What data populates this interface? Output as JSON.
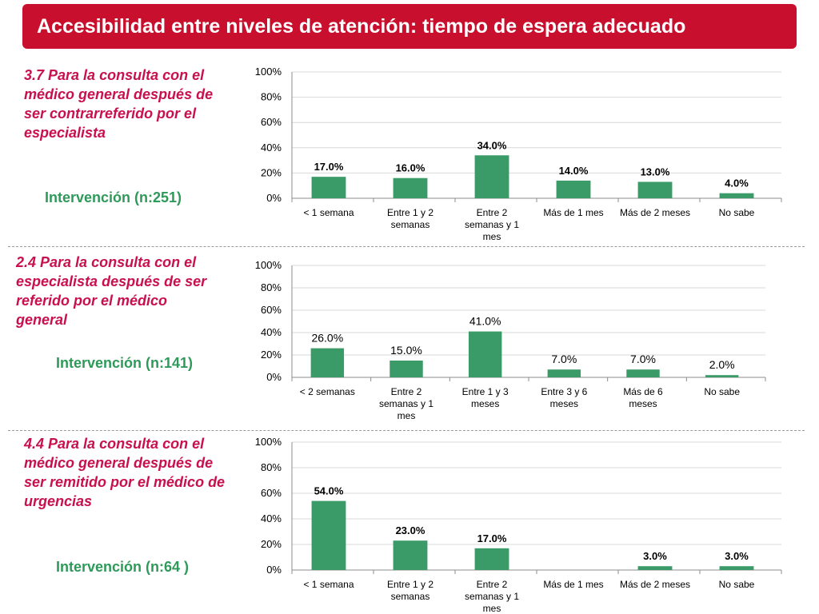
{
  "header": {
    "title": "Accesibilidad entre niveles de atención: tiempo de espera adecuado"
  },
  "sections": [
    {
      "question_lines": [
        "3.7 Para la consulta con el",
        "médico general después de",
        "ser contrarreferido por el",
        "especialista"
      ],
      "sample_label": "Intervención (n:251)"
    },
    {
      "question_lines": [
        "2.4 Para la consulta con el",
        "especialista después de ser",
        "referido por el médico",
        "general"
      ],
      "sample_label": "Intervención (n:141)"
    },
    {
      "question_lines": [
        "4.4 Para la consulta con el",
        "médico general después de",
        "ser remitido por el médico de",
        "urgencias"
      ],
      "sample_label": "Intervención (n:64 )"
    }
  ],
  "colors": {
    "header": "#c8102e",
    "question": "#c8104e",
    "sample": "#2e9a5a",
    "bar": "#3a9b68"
  },
  "chart_data": [
    {
      "type": "bar",
      "categories": [
        "< 1 semana",
        "Entre 1 y 2 semanas",
        "Entre 2 semanas y 1 mes",
        "Más de 1 mes",
        "Más de 2 meses",
        "No sabe"
      ],
      "category_lines": [
        [
          "< 1 semana"
        ],
        [
          "Entre 1 y 2",
          "semanas"
        ],
        [
          "Entre 2",
          "semanas y 1",
          "mes"
        ],
        [
          "Más de 1 mes"
        ],
        [
          "Más de 2 meses"
        ],
        [
          "No sabe"
        ]
      ],
      "values": [
        17.0,
        16.0,
        34.0,
        14.0,
        13.0,
        4.0
      ],
      "value_labels": [
        "17.0%",
        "16.0%",
        "34.0%",
        "14.0%",
        "13.0%",
        "4.0%"
      ],
      "ylim": [
        0,
        100
      ],
      "ytick_labels": [
        "0%",
        "20%",
        "40%",
        "60%",
        "80%",
        "100%"
      ],
      "bold_labels": true,
      "grid": true,
      "legend": false
    },
    {
      "type": "bar",
      "categories": [
        "< 2 semanas",
        "Entre 2 semanas y 1 mes",
        "Entre 1 y 3 meses",
        "Entre 3 y 6 meses",
        "Más de 6 meses",
        "No sabe"
      ],
      "category_lines": [
        [
          "< 2 semanas"
        ],
        [
          "Entre 2",
          "semanas y 1",
          "mes"
        ],
        [
          "Entre 1 y 3",
          "meses"
        ],
        [
          "Entre 3 y 6",
          "meses"
        ],
        [
          "Más de 6",
          "meses"
        ],
        [
          "No sabe"
        ]
      ],
      "values": [
        26.0,
        15.0,
        41.0,
        7.0,
        7.0,
        2.0
      ],
      "value_labels": [
        "26.0%",
        "15.0%",
        "41.0%",
        "7.0%",
        "7.0%",
        "2.0%"
      ],
      "ylim": [
        0,
        100
      ],
      "ytick_labels": [
        "0%",
        "20%",
        "40%",
        "60%",
        "80%",
        "100%"
      ],
      "bold_labels": false,
      "grid": true,
      "legend": false
    },
    {
      "type": "bar",
      "categories": [
        "< 1 semana",
        "Entre 1 y 2 semanas",
        "Entre 2 semanas y 1 mes",
        "Más de 1 mes",
        "Más de 2 meses",
        "No sabe"
      ],
      "category_lines": [
        [
          "< 1 semana"
        ],
        [
          "Entre 1 y 2",
          "semanas"
        ],
        [
          "Entre 2",
          "semanas y 1",
          "mes"
        ],
        [
          "Más de 1 mes"
        ],
        [
          "Más de 2 meses"
        ],
        [
          "No sabe"
        ]
      ],
      "values": [
        54.0,
        23.0,
        17.0,
        null,
        3.0,
        3.0
      ],
      "value_labels": [
        "54.0%",
        "23.0%",
        "17.0%",
        "",
        "3.0%",
        "3.0%"
      ],
      "ylim": [
        0,
        100
      ],
      "ytick_labels": [
        "0%",
        "20%",
        "40%",
        "60%",
        "80%",
        "100%"
      ],
      "bold_labels": true,
      "grid": true,
      "legend": false
    }
  ]
}
